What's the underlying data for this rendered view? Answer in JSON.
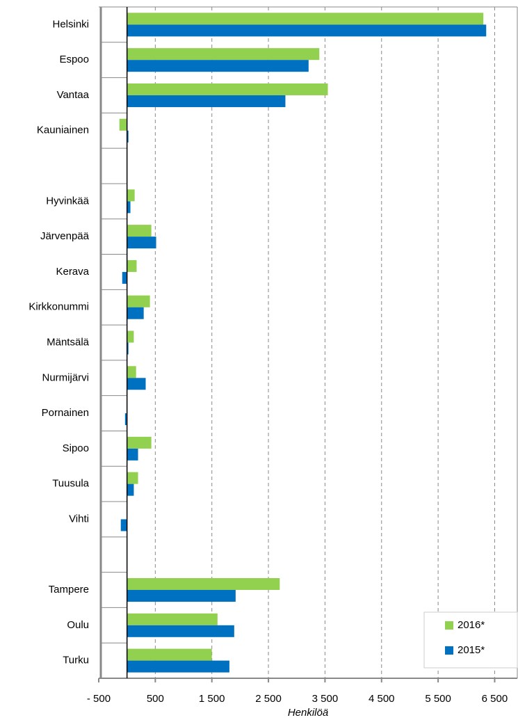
{
  "chart_data": {
    "type": "hbar",
    "x_label": "Henkilöä",
    "categories": [
      "Helsinki",
      "Espoo",
      "Vantaa",
      "Kauniainen",
      null,
      "Hyvinkää",
      "Järvenpää",
      "Kerava",
      "Kirkkonummi",
      "Mäntsälä",
      "Nurmijärvi",
      "Pornainen",
      "Sipoo",
      "Tuusula",
      "Vihti",
      null,
      "Tampere",
      "Oulu",
      "Turku"
    ],
    "series": [
      {
        "name": "2016*",
        "color": "#92d050",
        "values": [
          6300,
          3400,
          3550,
          -135,
          null,
          135,
          430,
          170,
          405,
          120,
          160,
          5,
          430,
          195,
          5,
          null,
          2700,
          1600,
          1500
        ]
      },
      {
        "name": "2015*",
        "color": "#0070c0",
        "values": [
          6350,
          3210,
          2800,
          25,
          null,
          60,
          515,
          -85,
          295,
          25,
          330,
          -35,
          195,
          120,
          -110,
          null,
          1920,
          1895,
          1810
        ]
      }
    ],
    "xlim": [
      -500,
      6900
    ],
    "xticks": [
      {
        "value": -500,
        "label": "- 500"
      },
      500,
      {
        "value": 1500,
        "label": "1 500"
      },
      {
        "value": 2500,
        "label": "2 500"
      },
      {
        "value": 3500,
        "label": "3 500"
      },
      {
        "value": 4500,
        "label": "4 500"
      },
      {
        "value": 5500,
        "label": "5 500"
      },
      {
        "value": 6500,
        "label": "6 500"
      }
    ],
    "grid": true,
    "legend": "lower right"
  }
}
